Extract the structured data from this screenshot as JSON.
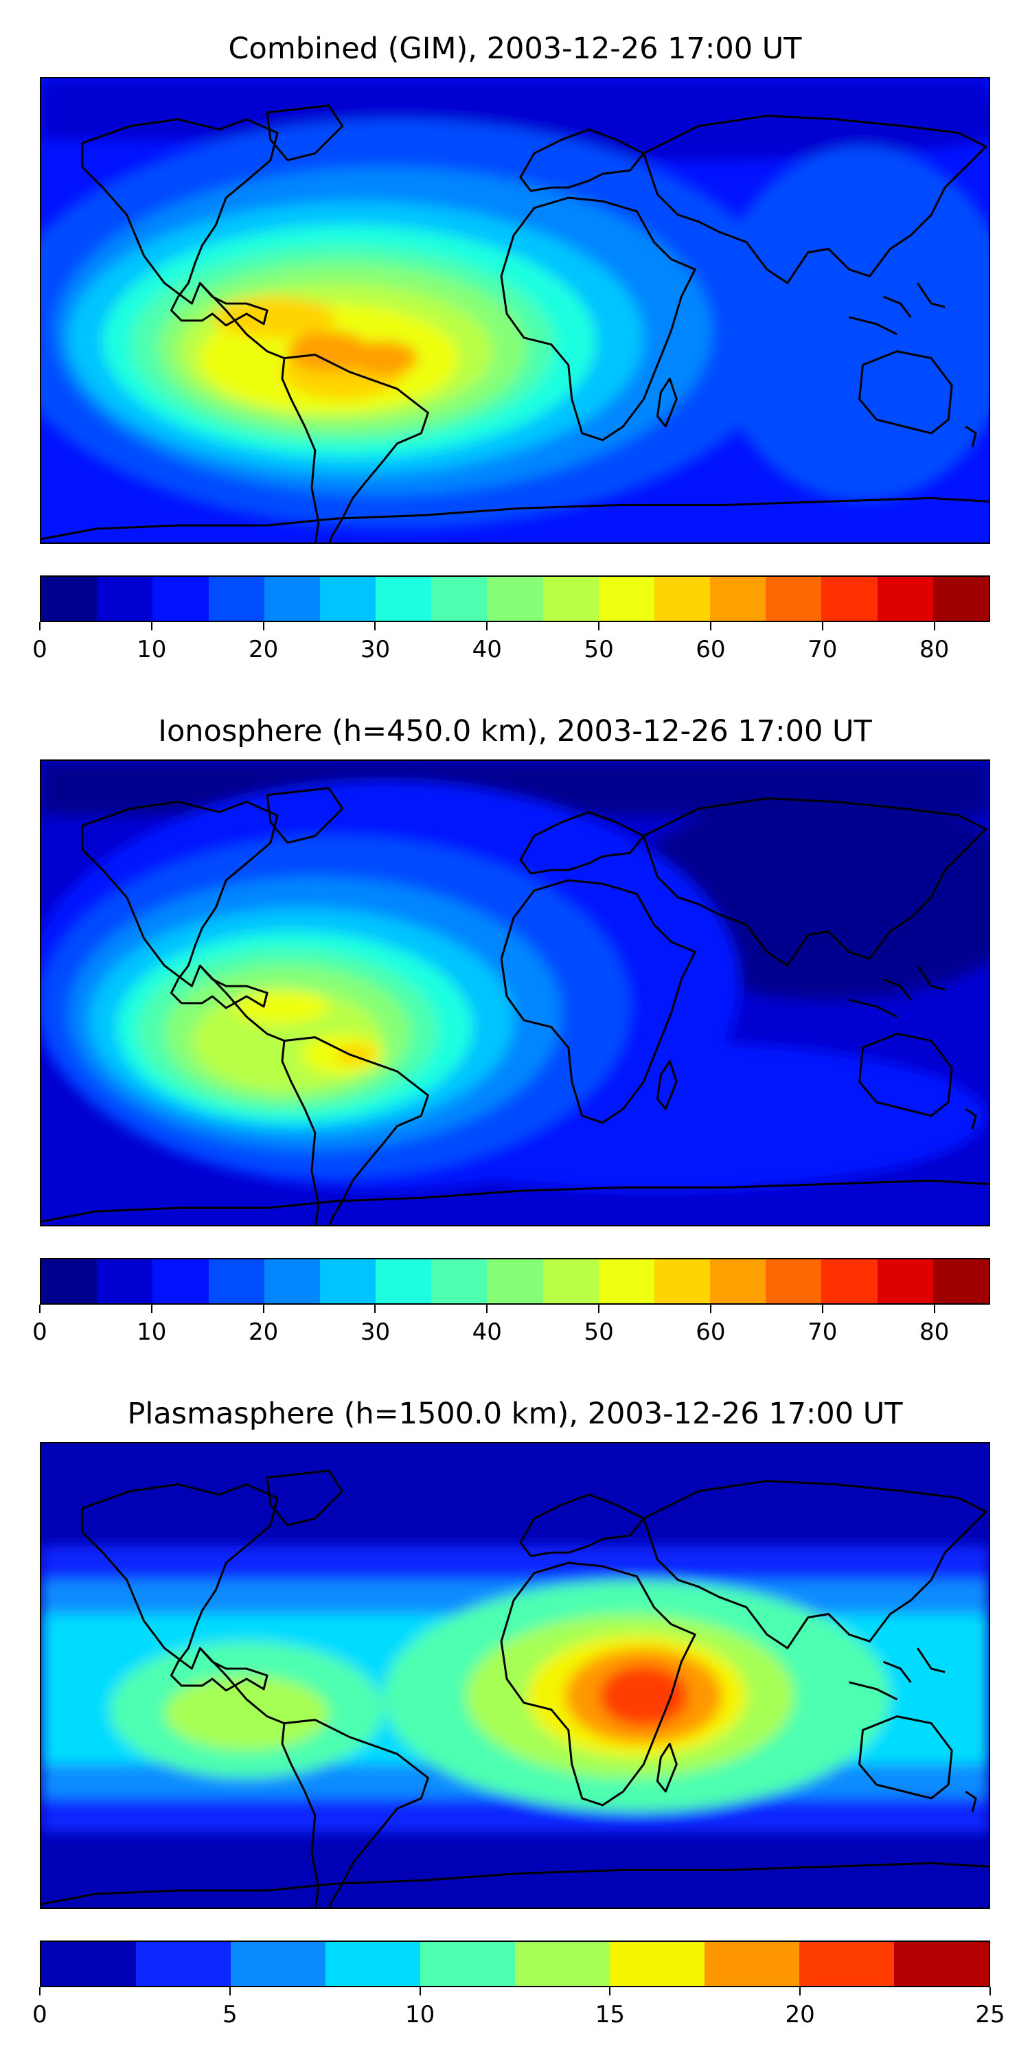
{
  "panels": [
    {
      "title": "Combined (GIM), 2003-12-26 17:00 UT",
      "colorbar": {
        "colors": [
          "#00008f",
          "#0000d0",
          "#0012ff",
          "#004cff",
          "#0086ff",
          "#00c4ff",
          "#1effe0",
          "#4dffae",
          "#86ff77",
          "#b9ff46",
          "#eeff11",
          "#ffd400",
          "#ff9f00",
          "#ff6800",
          "#ff3000",
          "#df0000",
          "#9f0000"
        ],
        "ticks": [
          "0",
          "10",
          "20",
          "30",
          "40",
          "50",
          "60",
          "70",
          "80"
        ]
      }
    },
    {
      "title": "Ionosphere  (h=450.0 km), 2003-12-26 17:00 UT",
      "colorbar": {
        "colors": [
          "#00008f",
          "#0000d0",
          "#0012ff",
          "#004cff",
          "#0086ff",
          "#00c4ff",
          "#1effe0",
          "#4dffae",
          "#86ff77",
          "#b9ff46",
          "#eeff11",
          "#ffd400",
          "#ff9f00",
          "#ff6800",
          "#ff3000",
          "#df0000",
          "#9f0000"
        ],
        "ticks": [
          "0",
          "10",
          "20",
          "30",
          "40",
          "50",
          "60",
          "70",
          "80"
        ]
      }
    },
    {
      "title": "Plasmasphere (h=1500.0 km), 2003-12-26 17:00 UT",
      "colorbar": {
        "colors": [
          "#0000b4",
          "#0a28ff",
          "#0a8cff",
          "#00dcff",
          "#4effb0",
          "#a6ff55",
          "#f5f500",
          "#ff9800",
          "#ff3c00",
          "#b40000"
        ],
        "ticks": [
          "0",
          "5",
          "10",
          "15",
          "20",
          "25"
        ]
      }
    }
  ]
}
